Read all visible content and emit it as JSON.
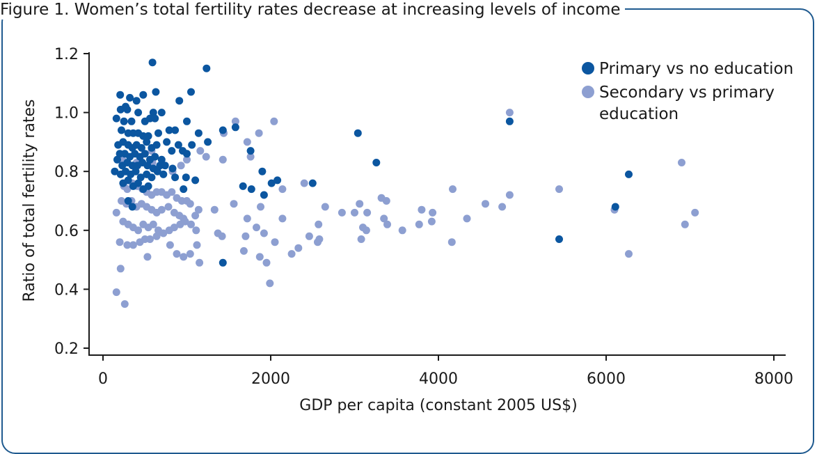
{
  "figure_title": "Figure 1. Women’s total fertility rates decrease at increasing levels of income",
  "colors": {
    "frame": "#1f5a8f",
    "primary": "#0b56a0",
    "secondary": "#8d9fd1"
  },
  "chart_data": {
    "type": "scatter",
    "title": "",
    "xlabel": "GDP per capita (constant 2005 US$)",
    "ylabel": "Ratio of total fertility rates",
    "xlim": [
      0,
      8000
    ],
    "ylim": [
      0.2,
      1.2
    ],
    "xticks": [
      0,
      2000,
      4000,
      6000,
      8000
    ],
    "yticks": [
      0.2,
      0.4,
      0.6,
      0.8,
      1.0,
      1.2
    ],
    "xtick_labels": [
      "0",
      "2000",
      "4000",
      "6000",
      "8000"
    ],
    "ytick_labels": [
      "0.2",
      "0.4",
      "0.6",
      "0.8",
      "1.0",
      "1.2"
    ],
    "grid": false,
    "legend_position": "top-right",
    "series": [
      {
        "name": "Primary vs no education",
        "color": "#0b56a0",
        "points": [
          [
            590,
            1.17
          ],
          [
            1235,
            1.15
          ],
          [
            205,
            1.06
          ],
          [
            630,
            1.07
          ],
          [
            1050,
            1.07
          ],
          [
            480,
            1.06
          ],
          [
            320,
            1.05
          ],
          [
            400,
            1.04
          ],
          [
            910,
            1.04
          ],
          [
            270,
            1.02
          ],
          [
            210,
            1.01
          ],
          [
            290,
            1.01
          ],
          [
            600,
            1.0
          ],
          [
            700,
            1.0
          ],
          [
            420,
            1.0
          ],
          [
            160,
            0.98
          ],
          [
            250,
            0.97
          ],
          [
            340,
            0.97
          ],
          [
            500,
            0.97
          ],
          [
            560,
            0.98
          ],
          [
            620,
            0.98
          ],
          [
            1000,
            0.97
          ],
          [
            220,
            0.94
          ],
          [
            300,
            0.93
          ],
          [
            360,
            0.93
          ],
          [
            420,
            0.93
          ],
          [
            480,
            0.92
          ],
          [
            540,
            0.92
          ],
          [
            660,
            0.93
          ],
          [
            790,
            0.94
          ],
          [
            860,
            0.94
          ],
          [
            1140,
            0.93
          ],
          [
            1430,
            0.94
          ],
          [
            1580,
            0.95
          ],
          [
            3040,
            0.93
          ],
          [
            4850,
            0.97
          ],
          [
            180,
            0.89
          ],
          [
            240,
            0.9
          ],
          [
            300,
            0.89
          ],
          [
            350,
            0.88
          ],
          [
            400,
            0.89
          ],
          [
            460,
            0.88
          ],
          [
            520,
            0.9
          ],
          [
            580,
            0.88
          ],
          [
            640,
            0.89
          ],
          [
            760,
            0.9
          ],
          [
            900,
            0.89
          ],
          [
            1060,
            0.89
          ],
          [
            1250,
            0.9
          ],
          [
            200,
            0.86
          ],
          [
            260,
            0.86
          ],
          [
            320,
            0.85
          ],
          [
            380,
            0.86
          ],
          [
            440,
            0.85
          ],
          [
            500,
            0.86
          ],
          [
            560,
            0.84
          ],
          [
            620,
            0.85
          ],
          [
            700,
            0.84
          ],
          [
            820,
            0.87
          ],
          [
            950,
            0.87
          ],
          [
            1000,
            0.86
          ],
          [
            1760,
            0.87
          ],
          [
            170,
            0.84
          ],
          [
            230,
            0.82
          ],
          [
            290,
            0.83
          ],
          [
            350,
            0.82
          ],
          [
            410,
            0.82
          ],
          [
            470,
            0.83
          ],
          [
            530,
            0.82
          ],
          [
            600,
            0.81
          ],
          [
            680,
            0.82
          ],
          [
            740,
            0.82
          ],
          [
            830,
            0.81
          ],
          [
            3260,
            0.83
          ],
          [
            140,
            0.8
          ],
          [
            210,
            0.79
          ],
          [
            270,
            0.8
          ],
          [
            330,
            0.79
          ],
          [
            390,
            0.8
          ],
          [
            450,
            0.78
          ],
          [
            520,
            0.79
          ],
          [
            580,
            0.78
          ],
          [
            650,
            0.8
          ],
          [
            720,
            0.79
          ],
          [
            860,
            0.78
          ],
          [
            990,
            0.78
          ],
          [
            1100,
            0.77
          ],
          [
            1900,
            0.8
          ],
          [
            6270,
            0.79
          ],
          [
            240,
            0.76
          ],
          [
            300,
            0.77
          ],
          [
            360,
            0.75
          ],
          [
            420,
            0.76
          ],
          [
            480,
            0.74
          ],
          [
            540,
            0.75
          ],
          [
            960,
            0.74
          ],
          [
            1670,
            0.75
          ],
          [
            1770,
            0.74
          ],
          [
            1920,
            0.72
          ],
          [
            2010,
            0.76
          ],
          [
            2080,
            0.77
          ],
          [
            2500,
            0.76
          ],
          [
            300,
            0.7
          ],
          [
            350,
            0.68
          ],
          [
            6110,
            0.68
          ],
          [
            1430,
            0.49
          ],
          [
            5440,
            0.57
          ]
        ]
      },
      {
        "name": "Secondary vs primary education",
        "color": "#8d9fd1",
        "points": [
          [
            4850,
            1.0
          ],
          [
            2040,
            0.97
          ],
          [
            1580,
            0.97
          ],
          [
            1860,
            0.93
          ],
          [
            1440,
            0.93
          ],
          [
            1720,
            0.9
          ],
          [
            1760,
            0.85
          ],
          [
            1230,
            0.85
          ],
          [
            1430,
            0.84
          ],
          [
            1000,
            0.84
          ],
          [
            930,
            0.82
          ],
          [
            590,
            0.83
          ],
          [
            400,
            0.83
          ],
          [
            6900,
            0.83
          ],
          [
            580,
            0.87
          ],
          [
            1160,
            0.87
          ],
          [
            830,
            0.8
          ],
          [
            230,
            0.84
          ],
          [
            250,
            0.75
          ],
          [
            290,
            0.74
          ],
          [
            350,
            0.76
          ],
          [
            410,
            0.75
          ],
          [
            470,
            0.74
          ],
          [
            520,
            0.73
          ],
          [
            580,
            0.72
          ],
          [
            640,
            0.73
          ],
          [
            700,
            0.73
          ],
          [
            760,
            0.72
          ],
          [
            820,
            0.73
          ],
          [
            880,
            0.71
          ],
          [
            940,
            0.7
          ],
          [
            1000,
            0.7
          ],
          [
            1040,
            0.69
          ],
          [
            2400,
            0.76
          ],
          [
            2140,
            0.74
          ],
          [
            4170,
            0.74
          ],
          [
            5440,
            0.74
          ],
          [
            4850,
            0.72
          ],
          [
            3320,
            0.71
          ],
          [
            3380,
            0.7
          ],
          [
            4560,
            0.69
          ],
          [
            4760,
            0.68
          ],
          [
            3060,
            0.69
          ],
          [
            2650,
            0.68
          ],
          [
            220,
            0.7
          ],
          [
            280,
            0.69
          ],
          [
            340,
            0.7
          ],
          [
            400,
            0.68
          ],
          [
            460,
            0.69
          ],
          [
            520,
            0.68
          ],
          [
            580,
            0.67
          ],
          [
            640,
            0.66
          ],
          [
            700,
            0.67
          ],
          [
            780,
            0.68
          ],
          [
            850,
            0.66
          ],
          [
            910,
            0.65
          ],
          [
            960,
            0.64
          ],
          [
            1100,
            0.65
          ],
          [
            1140,
            0.67
          ],
          [
            1330,
            0.67
          ],
          [
            1560,
            0.69
          ],
          [
            1880,
            0.68
          ],
          [
            1720,
            0.64
          ],
          [
            2140,
            0.64
          ],
          [
            2850,
            0.66
          ],
          [
            3000,
            0.66
          ],
          [
            3150,
            0.66
          ],
          [
            3800,
            0.67
          ],
          [
            3930,
            0.66
          ],
          [
            6100,
            0.67
          ],
          [
            7060,
            0.66
          ],
          [
            4340,
            0.64
          ],
          [
            160,
            0.66
          ],
          [
            240,
            0.63
          ],
          [
            300,
            0.62
          ],
          [
            360,
            0.61
          ],
          [
            420,
            0.6
          ],
          [
            480,
            0.62
          ],
          [
            540,
            0.61
          ],
          [
            600,
            0.62
          ],
          [
            660,
            0.6
          ],
          [
            720,
            0.59
          ],
          [
            790,
            0.6
          ],
          [
            850,
            0.61
          ],
          [
            920,
            0.62
          ],
          [
            980,
            0.63
          ],
          [
            1050,
            0.62
          ],
          [
            1110,
            0.6
          ],
          [
            3350,
            0.64
          ],
          [
            3390,
            0.62
          ],
          [
            3770,
            0.62
          ],
          [
            3920,
            0.63
          ],
          [
            6940,
            0.62
          ],
          [
            3100,
            0.61
          ],
          [
            3140,
            0.6
          ],
          [
            3570,
            0.6
          ],
          [
            2570,
            0.62
          ],
          [
            1830,
            0.61
          ],
          [
            1920,
            0.59
          ],
          [
            1700,
            0.58
          ],
          [
            1420,
            0.58
          ],
          [
            1370,
            0.59
          ],
          [
            200,
            0.56
          ],
          [
            290,
            0.55
          ],
          [
            360,
            0.55
          ],
          [
            440,
            0.56
          ],
          [
            500,
            0.57
          ],
          [
            560,
            0.57
          ],
          [
            640,
            0.58
          ],
          [
            800,
            0.55
          ],
          [
            880,
            0.52
          ],
          [
            960,
            0.51
          ],
          [
            1040,
            0.52
          ],
          [
            1120,
            0.55
          ],
          [
            1150,
            0.49
          ],
          [
            2050,
            0.56
          ],
          [
            2330,
            0.54
          ],
          [
            2250,
            0.52
          ],
          [
            2460,
            0.58
          ],
          [
            2560,
            0.56
          ],
          [
            2580,
            0.57
          ],
          [
            3080,
            0.57
          ],
          [
            4160,
            0.56
          ],
          [
            6270,
            0.52
          ],
          [
            1680,
            0.53
          ],
          [
            1870,
            0.51
          ],
          [
            1950,
            0.49
          ],
          [
            210,
            0.47
          ],
          [
            160,
            0.39
          ],
          [
            260,
            0.35
          ],
          [
            1990,
            0.42
          ],
          [
            530,
            0.51
          ]
        ]
      }
    ]
  }
}
